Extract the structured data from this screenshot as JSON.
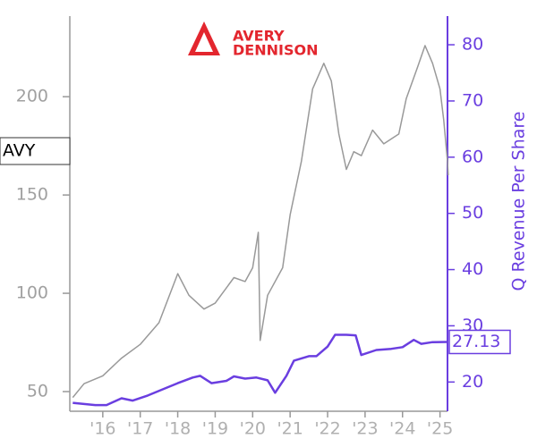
{
  "chart_data": {
    "type": "line",
    "logo_text": [
      "AVERY",
      "DENNISON"
    ],
    "y2_label": "Q Revenue Per Share",
    "xlim": [
      2015.12,
      2025.2
    ],
    "xticks": [
      {
        "value": 2016,
        "label": "'16"
      },
      {
        "value": 2017,
        "label": "'17"
      },
      {
        "value": 2018,
        "label": "'18"
      },
      {
        "value": 2019,
        "label": "'19"
      },
      {
        "value": 2020,
        "label": "'20"
      },
      {
        "value": 2021,
        "label": "'21"
      },
      {
        "value": 2022,
        "label": "'22"
      },
      {
        "value": 2023,
        "label": "'23"
      },
      {
        "value": 2024,
        "label": "'24"
      },
      {
        "value": 2025,
        "label": "'25"
      }
    ],
    "ylim": [
      40,
      241
    ],
    "yticks": [
      50,
      100,
      150,
      200
    ],
    "y2lim": [
      14.8,
      85.1
    ],
    "y2ticks": [
      20,
      30,
      40,
      50,
      60,
      70,
      80
    ],
    "series": [
      {
        "name": "AVY",
        "color": "#999999",
        "x": [
          2015.2,
          2015.5,
          2016.0,
          2016.5,
          2017.0,
          2017.5,
          2018.0,
          2018.3,
          2018.7,
          2019.0,
          2019.5,
          2019.8,
          2020.0,
          2020.15,
          2020.2,
          2020.4,
          2020.8,
          2021.0,
          2021.3,
          2021.6,
          2021.9,
          2022.1,
          2022.3,
          2022.5,
          2022.7,
          2022.9,
          2023.2,
          2023.5,
          2023.9,
          2024.1,
          2024.4,
          2024.6,
          2024.8,
          2025.0,
          2025.1,
          2025.2,
          2025.22
        ],
        "values": [
          47,
          54,
          58,
          67,
          74,
          85,
          110,
          99,
          92,
          95,
          108,
          106,
          113,
          131,
          76,
          99,
          113,
          140,
          167,
          204,
          217,
          208,
          181,
          163,
          172,
          170,
          183,
          176,
          181,
          199,
          215,
          226,
          217,
          204,
          188,
          167,
          160
        ]
      },
      {
        "name": "Q Revenue Per Share",
        "color": "#6a3ee0",
        "axis": "y2",
        "x": [
          2015.2,
          2015.8,
          2016.1,
          2016.5,
          2016.8,
          2017.2,
          2017.6,
          2018.0,
          2018.4,
          2018.6,
          2018.9,
          2019.3,
          2019.5,
          2019.8,
          2020.1,
          2020.4,
          2020.6,
          2020.9,
          2021.1,
          2021.5,
          2021.7,
          2022.0,
          2022.2,
          2022.5,
          2022.75,
          2022.9,
          2023.3,
          2023.7,
          2024.0,
          2024.3,
          2024.5,
          2024.8,
          2025.2
        ],
        "values": [
          16.3,
          15.9,
          15.9,
          17.1,
          16.7,
          17.6,
          18.7,
          19.8,
          20.8,
          21.1,
          19.8,
          20.2,
          21.0,
          20.6,
          20.8,
          20.3,
          18.1,
          21.1,
          23.8,
          24.6,
          24.6,
          26.3,
          28.4,
          28.4,
          28.3,
          24.8,
          25.7,
          25.9,
          26.2,
          27.5,
          26.8,
          27.1,
          27.13
        ],
        "value_labels": [
          null,
          null,
          null,
          null,
          null,
          null,
          null,
          null,
          null,
          null,
          null,
          null,
          null,
          null,
          null,
          null,
          null,
          null,
          null,
          null,
          null,
          null,
          null,
          null,
          null,
          null,
          null,
          null,
          null,
          null,
          null,
          null,
          "27.13"
        ]
      }
    ]
  }
}
